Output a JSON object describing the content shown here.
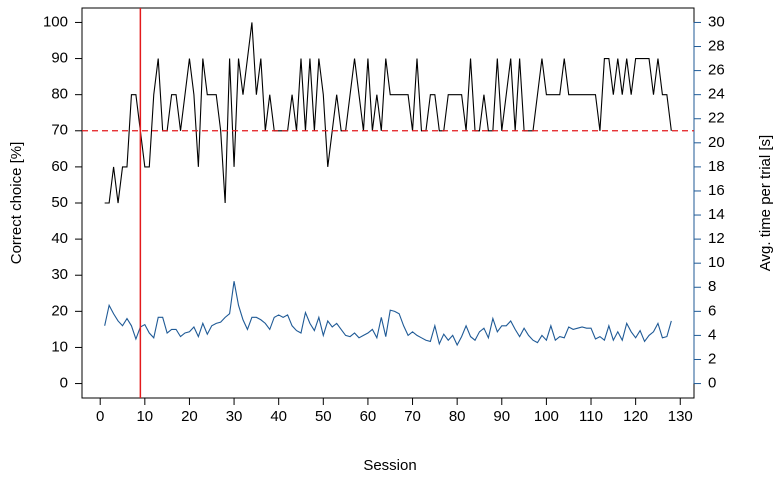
{
  "chart_data": {
    "type": "line",
    "x_label": "Session",
    "y_label": "Correct choice [%]",
    "y2_label": "Avg. time per trial [s]",
    "x": [
      1,
      2,
      3,
      4,
      5,
      6,
      7,
      8,
      9,
      10,
      11,
      12,
      13,
      14,
      15,
      16,
      17,
      18,
      19,
      20,
      21,
      22,
      23,
      24,
      25,
      26,
      27,
      28,
      29,
      30,
      31,
      32,
      33,
      34,
      35,
      36,
      37,
      38,
      39,
      40,
      41,
      42,
      43,
      44,
      45,
      46,
      47,
      48,
      49,
      50,
      51,
      52,
      53,
      54,
      55,
      56,
      57,
      58,
      59,
      60,
      61,
      62,
      63,
      64,
      65,
      66,
      67,
      68,
      69,
      70,
      71,
      72,
      73,
      74,
      75,
      76,
      77,
      78,
      79,
      80,
      81,
      82,
      83,
      84,
      85,
      86,
      87,
      88,
      89,
      90,
      91,
      92,
      93,
      94,
      95,
      96,
      97,
      98,
      99,
      100,
      101,
      102,
      103,
      104,
      105,
      106,
      107,
      108,
      109,
      110,
      111,
      112,
      113,
      114,
      115,
      116,
      117,
      118,
      119,
      120,
      121,
      122,
      123,
      124,
      125,
      126,
      127,
      128
    ],
    "series": [
      {
        "color": "#000000",
        "axis": "y",
        "values": [
          50,
          50,
          60,
          50,
          60,
          60,
          80,
          80,
          70,
          60,
          60,
          80,
          90,
          70,
          70,
          80,
          80,
          70,
          80,
          90,
          80,
          60,
          90,
          80,
          80,
          80,
          70,
          50,
          90,
          60,
          90,
          80,
          90,
          100,
          80,
          90,
          70,
          80,
          70,
          70,
          70,
          70,
          80,
          70,
          90,
          70,
          90,
          70,
          90,
          80,
          60,
          70,
          80,
          70,
          70,
          80,
          90,
          80,
          70,
          90,
          70,
          80,
          70,
          90,
          80,
          80,
          80,
          80,
          80,
          70,
          90,
          70,
          70,
          80,
          80,
          70,
          70,
          80,
          80,
          80,
          80,
          70,
          90,
          70,
          70,
          80,
          70,
          70,
          90,
          70,
          80,
          90,
          70,
          90,
          70,
          70,
          70,
          80,
          90,
          80,
          80,
          80,
          80,
          90,
          80,
          80,
          80,
          80,
          80,
          80,
          80,
          70,
          90,
          90,
          80,
          90,
          80,
          90,
          80,
          90,
          90,
          90,
          90,
          80,
          90,
          80,
          80,
          70
        ]
      },
      {
        "color": "#1f5a96",
        "axis": "y2",
        "values": [
          4.8,
          6.5,
          5.8,
          5.2,
          4.8,
          5.4,
          4.8,
          3.7,
          4.7,
          4.9,
          4.2,
          3.8,
          5.5,
          5.5,
          4.2,
          4.5,
          4.5,
          3.9,
          4.2,
          4.3,
          4.7,
          3.9,
          5.0,
          4.1,
          4.8,
          5.0,
          5.1,
          5.5,
          5.8,
          8.5,
          6.5,
          5.3,
          4.5,
          5.5,
          5.5,
          5.3,
          5.0,
          4.5,
          5.5,
          5.7,
          5.5,
          5.7,
          4.8,
          4.4,
          4.2,
          5.9,
          5.0,
          4.4,
          5.5,
          4.0,
          5.2,
          4.7,
          5.0,
          4.5,
          4.0,
          3.9,
          4.2,
          3.8,
          4.0,
          4.2,
          4.5,
          3.8,
          5.5,
          3.9,
          6.1,
          6.0,
          5.8,
          4.8,
          4.0,
          4.3,
          4.0,
          3.8,
          3.6,
          3.5,
          4.8,
          3.3,
          4.1,
          3.6,
          4.0,
          3.2,
          3.9,
          4.8,
          3.9,
          3.6,
          4.3,
          4.6,
          3.8,
          5.4,
          4.3,
          4.8,
          4.8,
          5.2,
          4.5,
          3.9,
          4.6,
          4.0,
          3.6,
          3.4,
          4.0,
          3.6,
          4.8,
          3.6,
          3.9,
          3.8,
          4.7,
          4.5,
          4.6,
          4.7,
          4.6,
          4.6,
          3.7,
          3.9,
          3.6,
          4.8,
          3.6,
          4.3,
          3.6,
          5.0,
          4.3,
          3.8,
          4.4,
          3.5,
          4.0,
          4.3,
          5.0,
          3.8,
          3.9,
          5.2
        ]
      }
    ],
    "vline": {
      "x": 9,
      "color": "#e31a1c"
    },
    "hline": {
      "y": 70,
      "color": "#e31a1c",
      "dashed": true
    },
    "xlim": [
      -4.08,
      133.08
    ],
    "ylim": [
      -4,
      104
    ],
    "y2lim": [
      -1.2,
      31.2
    ],
    "xticks": [
      0,
      10,
      20,
      30,
      40,
      50,
      60,
      70,
      80,
      90,
      100,
      110,
      120,
      130
    ],
    "yticks": [
      0,
      10,
      20,
      30,
      40,
      50,
      60,
      70,
      80,
      90,
      100
    ],
    "y2ticks": [
      0,
      2,
      4,
      6,
      8,
      10,
      12,
      14,
      16,
      18,
      20,
      22,
      24,
      26,
      28,
      30
    ],
    "y2_color": "#1f5a96"
  }
}
